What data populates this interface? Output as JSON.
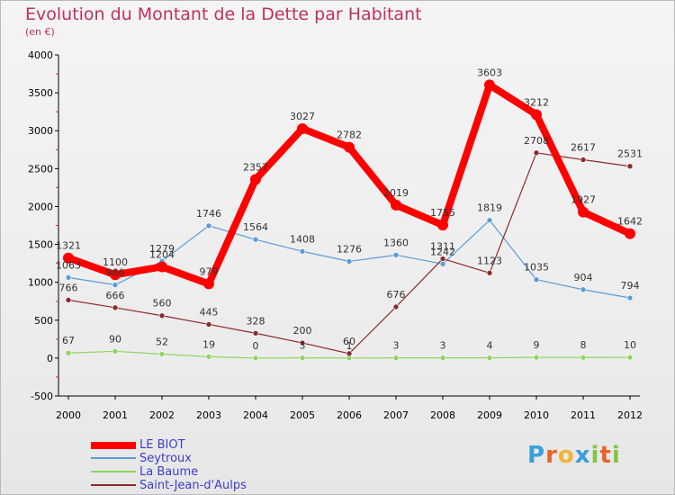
{
  "title": "Evolution du Montant de la Dette par Habitant",
  "subtitle": "(en €)",
  "brand": {
    "letters": [
      "P",
      "r",
      "o",
      "x",
      "i",
      "t",
      "i"
    ],
    "colors": [
      "#3a9fd8",
      "#e8622c",
      "#f2b233",
      "#3a9fd8",
      "#86c440",
      "#e8622c",
      "#86c440"
    ]
  },
  "chart_data": {
    "type": "line",
    "x": [
      "2000",
      "2001",
      "2002",
      "2003",
      "2004",
      "2005",
      "2006",
      "2007",
      "2008",
      "2009",
      "2010",
      "2011",
      "2012"
    ],
    "ylim": [
      -500,
      4000
    ],
    "yticks": [
      "-500",
      "0",
      "500",
      "1000",
      "1500",
      "2000",
      "2500",
      "3000",
      "3500",
      "4000"
    ],
    "grid": false,
    "legend_position": "bottom-left",
    "series": [
      {
        "name": "LE BIOT",
        "color": "#ff0000",
        "values": [
          1321,
          1100,
          1204,
          979,
          2357,
          3027,
          2782,
          2019,
          1755,
          3603,
          3212,
          1927,
          1642
        ],
        "labels": [
          "1321",
          "1100",
          "1204",
          "979",
          "2357",
          "3027",
          "2782",
          "2019",
          "1755",
          "3603",
          "3212",
          "1927",
          "1642"
        ]
      },
      {
        "name": "Seytroux",
        "color": "#5b9bd5",
        "values": [
          1063,
          966,
          1279,
          1746,
          1564,
          1408,
          1276,
          1360,
          1242,
          1819,
          1035,
          904,
          794
        ],
        "labels": [
          "1063",
          "966",
          "1279",
          "1746",
          "1564",
          "1408",
          "1276",
          "1360",
          "1242",
          "1819",
          "1035",
          "904",
          "794"
        ]
      },
      {
        "name": "La Baume",
        "color": "#8fd460",
        "values": [
          67,
          90,
          52,
          19,
          0,
          3,
          1,
          3,
          3,
          4,
          9,
          8,
          10
        ],
        "labels": [
          "67",
          "90",
          "52",
          "19",
          "0",
          "3",
          "1",
          "3",
          "3",
          "4",
          "9",
          "8",
          "10"
        ]
      },
      {
        "name": "Saint-Jean-d'Aulps",
        "color": "#8b2b2b",
        "values": [
          766,
          666,
          560,
          445,
          328,
          200,
          60,
          676,
          1311,
          1123,
          2708,
          2617,
          2531
        ],
        "labels": [
          "766",
          "666",
          "560",
          "445",
          "328",
          "200",
          "60",
          "676",
          "1311",
          "1123",
          "2708",
          "2617",
          "2531"
        ]
      }
    ]
  }
}
